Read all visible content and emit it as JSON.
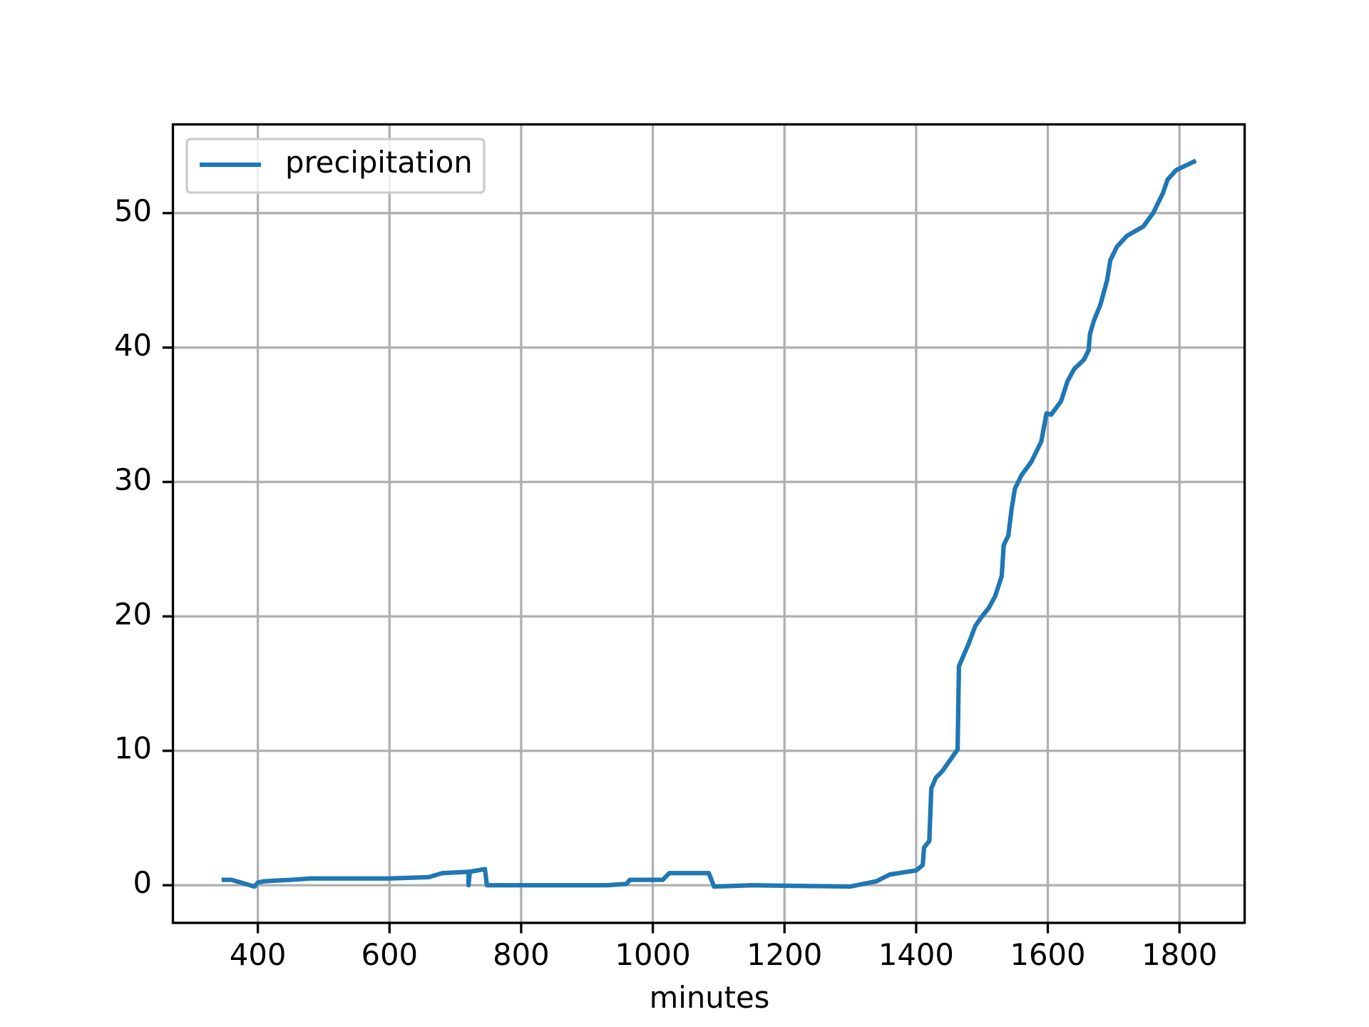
{
  "chart_data": {
    "type": "line",
    "xlabel": "minutes",
    "x": [
      345,
      360,
      395,
      400,
      410,
      450,
      480,
      520,
      600,
      660,
      680,
      720,
      720,
      722,
      745,
      748,
      800,
      930,
      960,
      965,
      1015,
      1025,
      1085,
      1093,
      1150,
      1300,
      1340,
      1360,
      1400,
      1410,
      1412,
      1420,
      1423,
      1430,
      1440,
      1450,
      1463,
      1465,
      1480,
      1490,
      1500,
      1510,
      1520,
      1530,
      1533,
      1540,
      1545,
      1550,
      1560,
      1575,
      1590,
      1598,
      1605,
      1620,
      1630,
      1640,
      1655,
      1662,
      1664,
      1670,
      1680,
      1690,
      1695,
      1705,
      1720,
      1745,
      1760,
      1775,
      1782,
      1795,
      1825
    ],
    "series": [
      {
        "name": "precipitation",
        "color": "#1f77b4",
        "values": [
          0.4,
          0.4,
          -0.1,
          0.2,
          0.3,
          0.4,
          0.5,
          0.5,
          0.5,
          0.6,
          0.9,
          1.0,
          0.0,
          1.0,
          1.2,
          0.0,
          0.0,
          0.0,
          0.1,
          0.4,
          0.4,
          0.9,
          0.9,
          -0.1,
          0.0,
          -0.1,
          0.3,
          0.8,
          1.1,
          1.5,
          2.8,
          3.3,
          7.2,
          8.0,
          8.5,
          9.2,
          10.1,
          16.3,
          18.0,
          19.3,
          20.0,
          20.6,
          21.5,
          23.0,
          25.3,
          26.0,
          28.0,
          29.5,
          30.5,
          31.5,
          33.0,
          35.1,
          35.0,
          36.0,
          37.5,
          38.4,
          39.1,
          39.8,
          41.0,
          42.0,
          43.2,
          45.0,
          46.5,
          47.5,
          48.3,
          49.0,
          50.0,
          51.5,
          52.5,
          53.2,
          53.9
        ]
      }
    ],
    "xlim": [
      271,
      1899
    ],
    "ylim": [
      -2.8,
      56.6
    ],
    "xticks": [
      400,
      600,
      800,
      1000,
      1200,
      1400,
      1600,
      1800
    ],
    "yticks": [
      0,
      10,
      20,
      30,
      40,
      50
    ],
    "grid": true,
    "legend": "upper left"
  }
}
